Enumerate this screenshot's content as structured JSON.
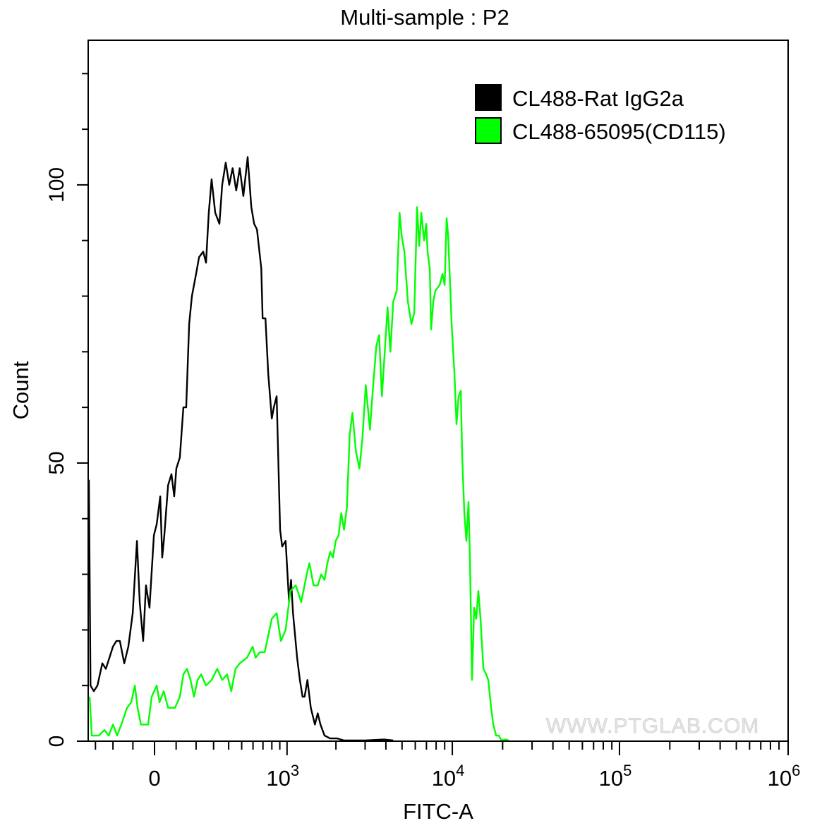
{
  "chart_data": {
    "type": "line",
    "title": "Multi-sample : P2",
    "xlabel": "FITC-A",
    "ylabel": "Count",
    "x_scale": "biexponential",
    "xlim": [
      -343,
      1000000
    ],
    "ylim": [
      0,
      126
    ],
    "x_ticks": [
      {
        "value": 0,
        "base": "0",
        "exp": ""
      },
      {
        "value": 1000,
        "base": "10",
        "exp": "3"
      },
      {
        "value": 10000,
        "base": "10",
        "exp": "4"
      },
      {
        "value": 100000,
        "base": "10",
        "exp": "5"
      },
      {
        "value": 1000000,
        "base": "10",
        "exp": "6"
      }
    ],
    "y_ticks": [
      {
        "value": 0,
        "label": "0"
      },
      {
        "value": 50,
        "label": "50"
      },
      {
        "value": 100,
        "label": "100"
      }
    ],
    "grid": false,
    "legend_position": "top-right",
    "watermark": "WWW.PTGLAB.COM",
    "series": [
      {
        "name": "CL488-Rat IgG2a",
        "color": "#000000",
        "points": [
          [
            -343,
            47
          ],
          [
            -331,
            10
          ],
          [
            -310,
            9
          ],
          [
            -288,
            10
          ],
          [
            -259,
            14
          ],
          [
            -239,
            13
          ],
          [
            -219,
            15
          ],
          [
            -200,
            17
          ],
          [
            -182,
            18
          ],
          [
            -164,
            18
          ],
          [
            -142,
            14
          ],
          [
            -122,
            17
          ],
          [
            -101,
            23
          ],
          [
            -81,
            36
          ],
          [
            -68,
            25
          ],
          [
            -52,
            18
          ],
          [
            -39,
            28
          ],
          [
            -23,
            24
          ],
          [
            -3,
            37
          ],
          [
            10,
            39
          ],
          [
            26,
            44
          ],
          [
            35,
            33
          ],
          [
            45,
            37
          ],
          [
            62,
            46
          ],
          [
            78,
            48
          ],
          [
            91,
            44
          ],
          [
            101,
            49
          ],
          [
            118,
            51
          ],
          [
            135,
            60
          ],
          [
            149,
            60
          ],
          [
            164,
            75
          ],
          [
            178,
            80
          ],
          [
            200,
            84
          ],
          [
            216,
            87
          ],
          [
            239,
            88
          ],
          [
            255,
            86
          ],
          [
            271,
            95
          ],
          [
            288,
            101
          ],
          [
            310,
            95
          ],
          [
            337,
            93
          ],
          [
            355,
            100
          ],
          [
            379,
            104
          ],
          [
            404,
            100
          ],
          [
            429,
            103
          ],
          [
            456,
            99
          ],
          [
            484,
            103
          ],
          [
            514,
            98
          ],
          [
            551,
            105
          ],
          [
            584,
            96
          ],
          [
            611,
            93
          ],
          [
            638,
            92
          ],
          [
            682,
            85
          ],
          [
            696,
            76
          ],
          [
            727,
            76
          ],
          [
            758,
            66
          ],
          [
            799,
            58
          ],
          [
            824,
            60
          ],
          [
            859,
            62
          ],
          [
            904,
            38
          ],
          [
            932,
            35
          ],
          [
            980,
            36
          ],
          [
            1030,
            25
          ],
          [
            1060,
            29
          ],
          [
            1090,
            23
          ],
          [
            1157,
            15
          ],
          [
            1203,
            11
          ],
          [
            1250,
            8
          ],
          [
            1287,
            8
          ],
          [
            1339,
            11
          ],
          [
            1405,
            6
          ],
          [
            1489,
            3
          ],
          [
            1549,
            5
          ],
          [
            1610,
            3
          ],
          [
            1706,
            1
          ],
          [
            1845,
            0.5
          ],
          [
            2033,
            0.5
          ],
          [
            2240,
            0
          ],
          [
            2467,
            0
          ],
          [
            3000,
            0
          ],
          [
            3899,
            0.3
          ],
          [
            4424,
            0
          ]
        ]
      },
      {
        "name": "CL488-65095(CD115)",
        "color": "#00ff00",
        "points": [
          [
            -337,
            8
          ],
          [
            -323,
            1
          ],
          [
            -280,
            1
          ],
          [
            -247,
            2
          ],
          [
            -223,
            1
          ],
          [
            -200,
            3
          ],
          [
            -178,
            1
          ],
          [
            -157,
            3
          ],
          [
            -128,
            6
          ],
          [
            -108,
            7
          ],
          [
            -91,
            10
          ],
          [
            -78,
            6
          ],
          [
            -62,
            3
          ],
          [
            -29,
            3
          ],
          [
            -13,
            8
          ],
          [
            10,
            10
          ],
          [
            23,
            7
          ],
          [
            42,
            9
          ],
          [
            62,
            6
          ],
          [
            95,
            6
          ],
          [
            118,
            8
          ],
          [
            135,
            12
          ],
          [
            153,
            13
          ],
          [
            171,
            11
          ],
          [
            189,
            8
          ],
          [
            208,
            11
          ],
          [
            227,
            12
          ],
          [
            255,
            10
          ],
          [
            288,
            11
          ],
          [
            323,
            13
          ],
          [
            355,
            11
          ],
          [
            389,
            12
          ],
          [
            419,
            9
          ],
          [
            451,
            13
          ],
          [
            484,
            14
          ],
          [
            545,
            15
          ],
          [
            597,
            17
          ],
          [
            625,
            15
          ],
          [
            667,
            16
          ],
          [
            719,
            16
          ],
          [
            799,
            22
          ],
          [
            859,
            23
          ],
          [
            914,
            18
          ],
          [
            980,
            20
          ],
          [
            1050,
            27
          ],
          [
            1135,
            28
          ],
          [
            1226,
            25
          ],
          [
            1326,
            30
          ],
          [
            1378,
            32
          ],
          [
            1461,
            28
          ],
          [
            1549,
            28
          ],
          [
            1626,
            30
          ],
          [
            1706,
            29
          ],
          [
            1774,
            32
          ],
          [
            1845,
            34
          ],
          [
            1918,
            33
          ],
          [
            1994,
            36
          ],
          [
            2073,
            37
          ],
          [
            2155,
            41
          ],
          [
            2240,
            38
          ],
          [
            2328,
            42
          ],
          [
            2421,
            55
          ],
          [
            2516,
            59
          ],
          [
            2642,
            52
          ],
          [
            2773,
            49
          ],
          [
            2884,
            54
          ],
          [
            3027,
            64
          ],
          [
            3208,
            56
          ],
          [
            3337,
            63
          ],
          [
            3502,
            71
          ],
          [
            3641,
            73
          ],
          [
            3786,
            62
          ],
          [
            3936,
            70
          ],
          [
            4093,
            78
          ],
          [
            4255,
            70
          ],
          [
            4424,
            79
          ],
          [
            4645,
            81
          ],
          [
            4830,
            95
          ],
          [
            4966,
            91
          ],
          [
            5164,
            88
          ],
          [
            5421,
            79
          ],
          [
            5692,
            75
          ],
          [
            5918,
            77
          ],
          [
            6152,
            96
          ],
          [
            6339,
            89
          ],
          [
            6519,
            95
          ],
          [
            6777,
            90
          ],
          [
            6982,
            93
          ],
          [
            7113,
            88
          ],
          [
            7328,
            85
          ],
          [
            7464,
            74
          ],
          [
            7692,
            79
          ],
          [
            7925,
            81
          ],
          [
            8395,
            82
          ],
          [
            8730,
            84
          ],
          [
            8995,
            82
          ],
          [
            9249,
            94
          ],
          [
            9440,
            91
          ],
          [
            9705,
            82
          ],
          [
            9908,
            75
          ],
          [
            10300,
            66
          ],
          [
            10590,
            57
          ],
          [
            10910,
            62
          ],
          [
            11240,
            63
          ],
          [
            11460,
            51
          ],
          [
            11800,
            41
          ],
          [
            12140,
            36
          ],
          [
            12500,
            43
          ],
          [
            12740,
            33
          ],
          [
            13120,
            11
          ],
          [
            13510,
            24
          ],
          [
            13900,
            22
          ],
          [
            14320,
            27
          ],
          [
            14750,
            22
          ],
          [
            15340,
            13
          ],
          [
            15950,
            12
          ],
          [
            16410,
            11
          ],
          [
            17070,
            6
          ],
          [
            17580,
            3
          ],
          [
            18280,
            1
          ],
          [
            18970,
            1
          ],
          [
            19730,
            0
          ],
          [
            20920,
            0.3
          ],
          [
            21760,
            0
          ]
        ]
      }
    ]
  }
}
